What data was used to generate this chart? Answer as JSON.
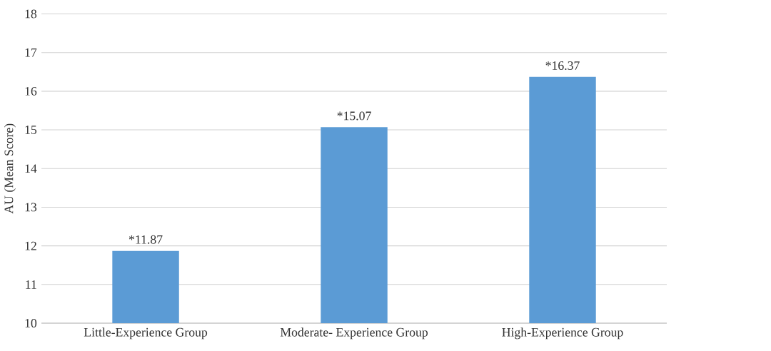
{
  "chart_data": {
    "type": "bar",
    "ylabel": "AU (Mean Score)",
    "categories": [
      "Little-Experience Group",
      "Moderate- Experience Group",
      "High-Experience Group"
    ],
    "values": [
      11.87,
      15.07,
      16.37
    ],
    "value_labels": [
      "*11.87",
      "*15.07",
      "*16.37"
    ],
    "color": "#5b9bd5",
    "ylim": [
      10,
      18
    ],
    "yticks": [
      10,
      11,
      12,
      13,
      14,
      15,
      16,
      17,
      18
    ],
    "grid": "y"
  }
}
